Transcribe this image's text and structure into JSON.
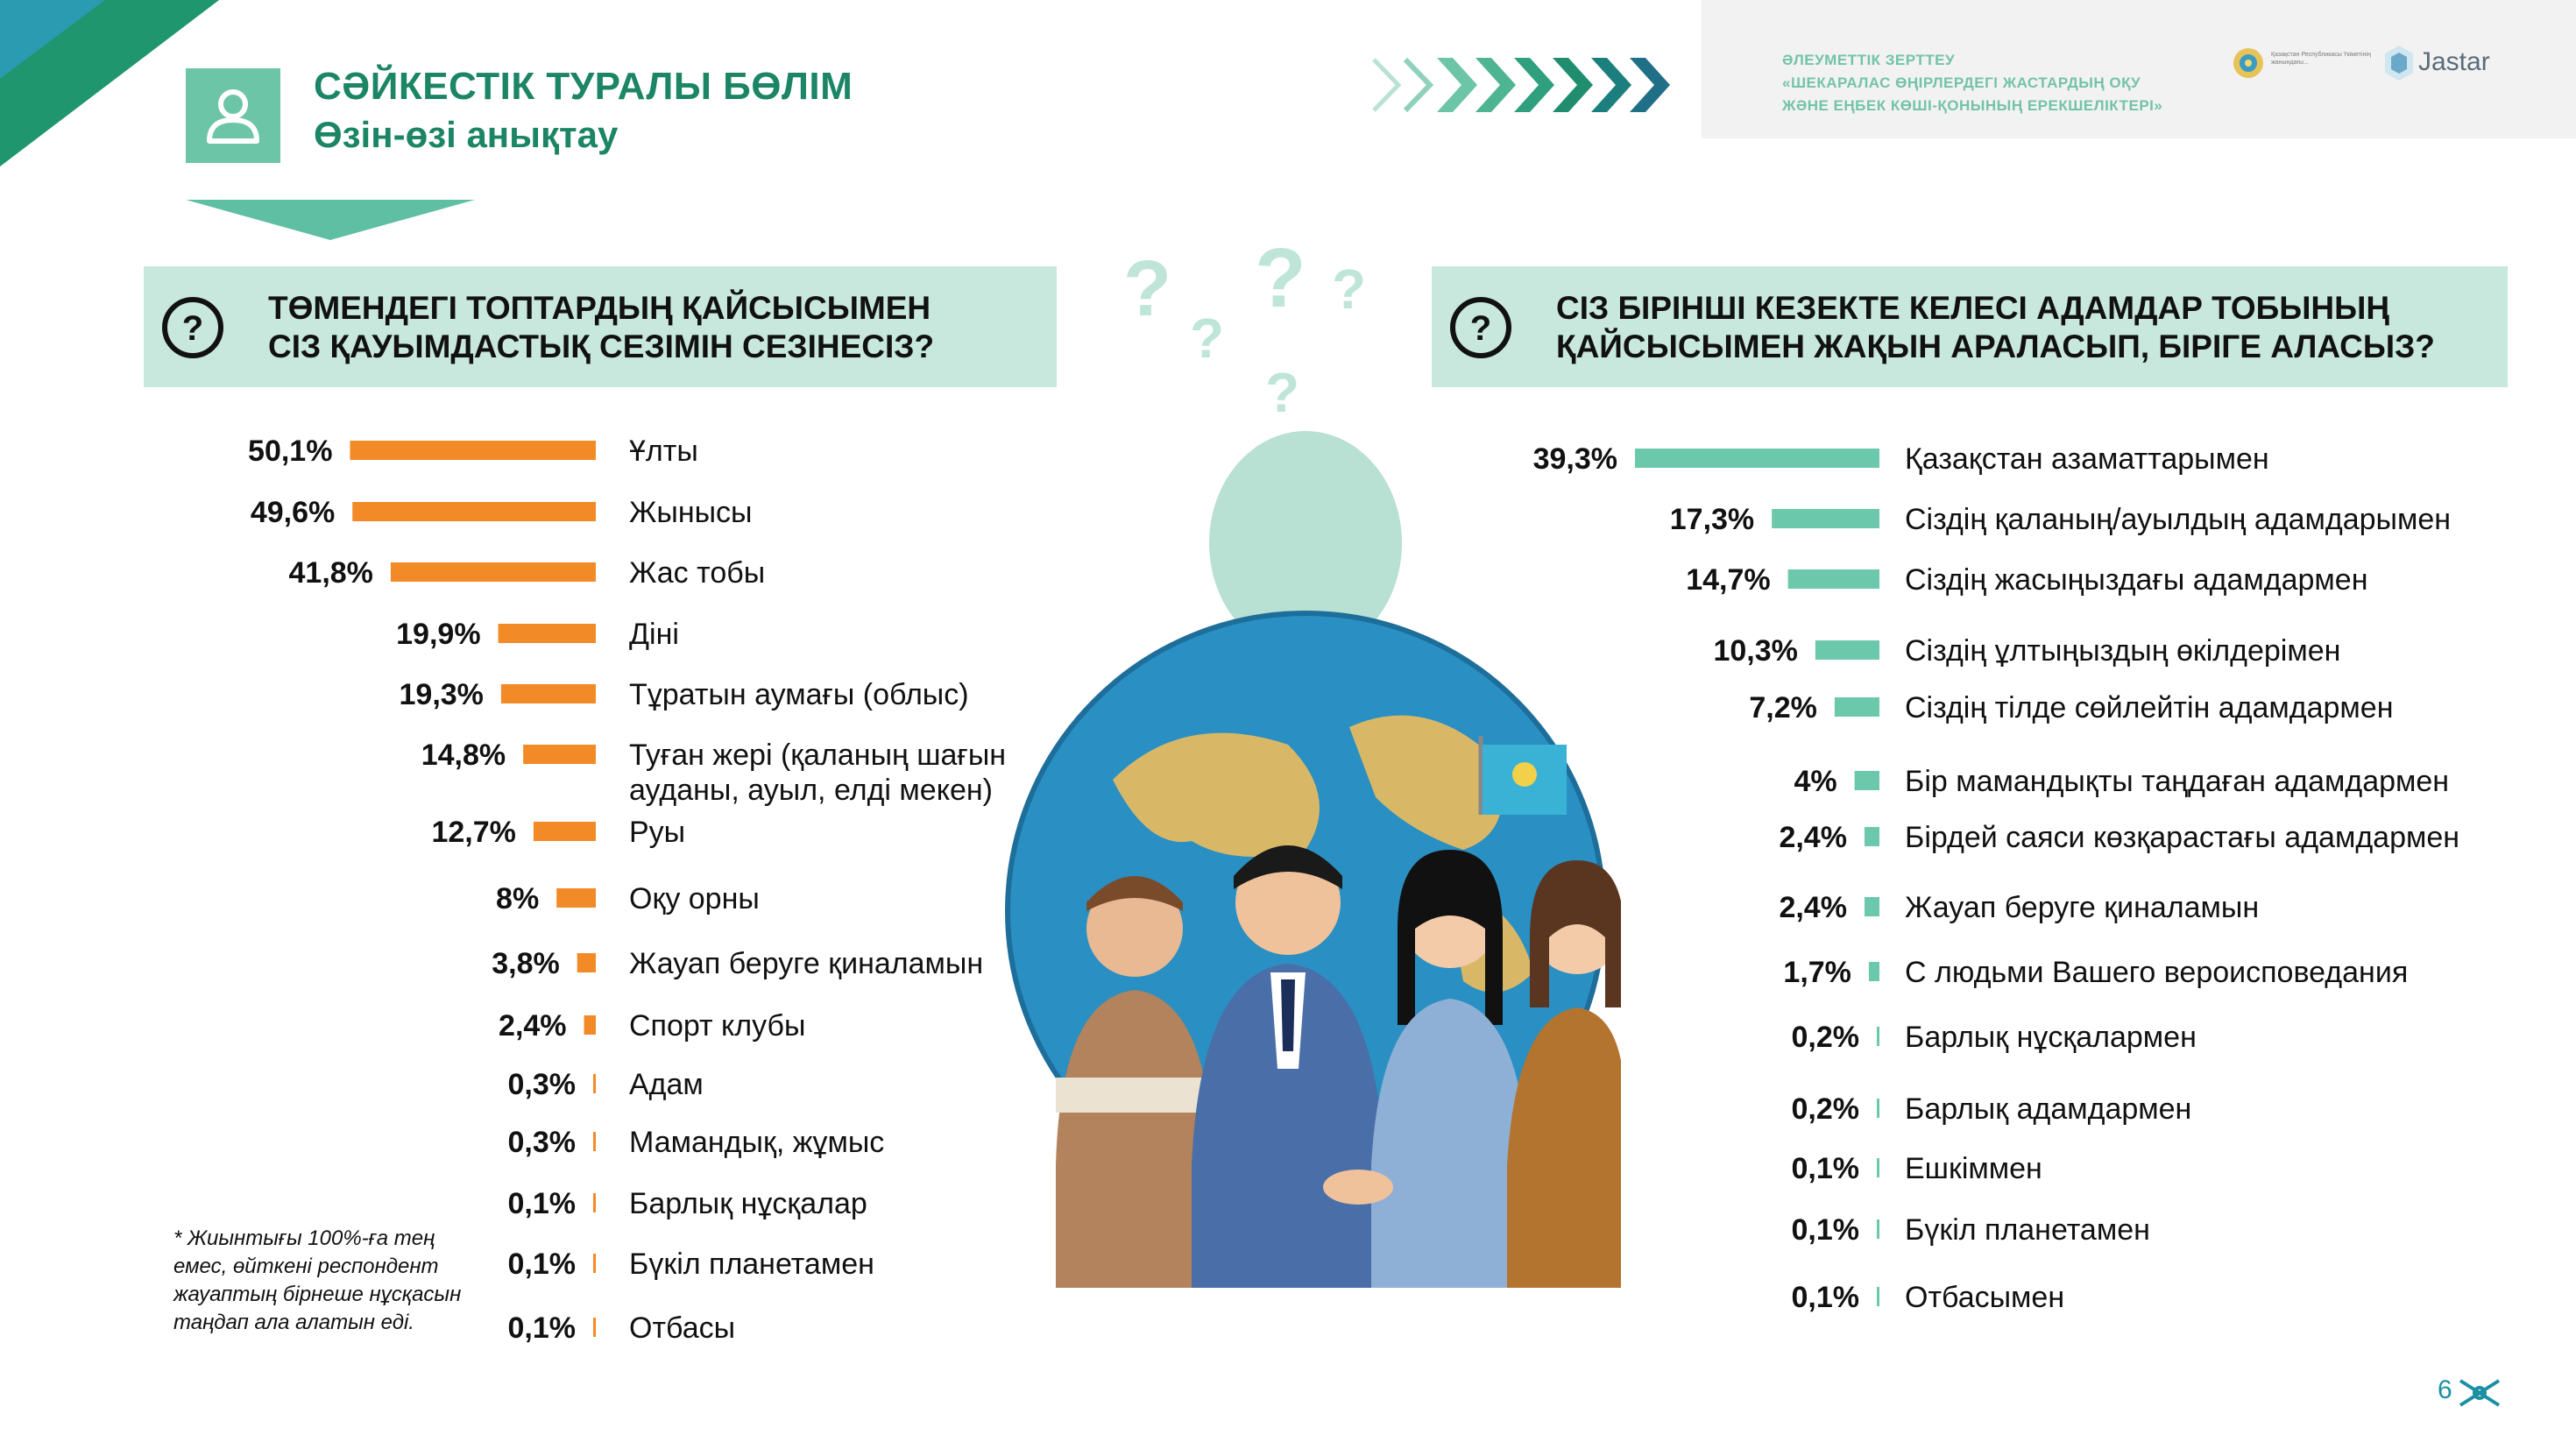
{
  "header": {
    "title": "СӘЙКЕСТІК ТУРАЛЫ БӨЛІМ",
    "subtitle": "Өзін-өзі анықтау",
    "research_line1": "ӘЛЕУМЕТТІК ЗЕРТТЕУ",
    "research_line2": "«ШЕКАРАЛАС ӨҢІРЛЕРДЕГІ ЖАСТАРДЫҢ ОҚУ",
    "research_line3": "ЖӘНЕ ЕҢБЕК КӨШІ-ҚОНЫНЫҢ ЕРЕКШЕЛІКТЕРІ»",
    "logo1_text": "Қазақстан Республикасы Үкіметінің жанындағы...",
    "logo2_text": "Jastar"
  },
  "colors": {
    "accent_green": "#1b8565",
    "question_bg": "#c8e8de",
    "bar_orange": "#f28a27",
    "bar_teal": "#6cc8aa"
  },
  "footnote": "* Жиынтығы 100%-ға тең емес, өйткені респондент жауаптың бірнеше нұсқасын таңдап ала алатын еді.",
  "page_number": "6",
  "chart_data": [
    {
      "type": "bar",
      "orientation": "horizontal",
      "title_line1": "ТӨМЕНДЕГІ ТОПТАРДЫҢ ҚАЙСЫСЫМЕН",
      "title_line2": "СІЗ ҚАУЫМДАСТЫҚ СЕЗІМІН СЕЗІНЕСІЗ?",
      "items": [
        {
          "label": "Ұлты",
          "value": 50.1,
          "display": "50,1%"
        },
        {
          "label": "Жынысы",
          "value": 49.6,
          "display": "49,6%"
        },
        {
          "label": "Жас тобы",
          "value": 41.8,
          "display": "41,8%"
        },
        {
          "label": "Діні",
          "value": 19.9,
          "display": "19,9%"
        },
        {
          "label": "Тұратын аумағы (облыс)",
          "value": 19.3,
          "display": "19,3%"
        },
        {
          "label": "Туған жері (қаланың шағын",
          "label2": "ауданы, ауыл, елді мекен)",
          "value": 14.8,
          "display": "14,8%"
        },
        {
          "label": "Руы",
          "value": 12.7,
          "display": "12,7%"
        },
        {
          "label": "Оқу орны",
          "value": 8,
          "display": "8%"
        },
        {
          "label": "Жауап беруге қиналамын",
          "value": 3.8,
          "display": "3,8%"
        },
        {
          "label": "Спорт клубы",
          "value": 2.4,
          "display": "2,4%"
        },
        {
          "label": "Адам",
          "value": 0.3,
          "display": "0,3%"
        },
        {
          "label": "Мамандық, жұмыс",
          "value": 0.3,
          "display": "0,3%"
        },
        {
          "label": "Барлық нұсқалар",
          "value": 0.1,
          "display": "0,1%"
        },
        {
          "label": "Бүкіл планетамен",
          "value": 0.1,
          "display": "0,1%"
        },
        {
          "label": "Отбасы",
          "value": 0.1,
          "display": "0,1%"
        }
      ]
    },
    {
      "type": "bar",
      "orientation": "horizontal",
      "title_line1": "СІЗ БІРІНШІ КЕЗЕКТЕ КЕЛЕСІ АДАМДАР ТОБЫНЫҢ",
      "title_line2": "ҚАЙСЫСЫМЕН ЖАҚЫН АРАЛАСЫП, БІРІГЕ АЛАСЫЗ?",
      "items": [
        {
          "label": "Қазақстан азаматтарымен",
          "value": 39.3,
          "display": "39,3%"
        },
        {
          "label": "Сіздің қаланың/ауылдың адамдарымен",
          "value": 17.3,
          "display": "17,3%"
        },
        {
          "label": "Сіздің жасыңыздағы адамдармен",
          "value": 14.7,
          "display": "14,7%"
        },
        {
          "label": "Сіздің ұлтыңыздың өкілдерімен",
          "value": 10.3,
          "display": "10,3%"
        },
        {
          "label": "Сіздің тілде сөйлейтін адамдармен",
          "value": 7.2,
          "display": "7,2%"
        },
        {
          "label": "Бір мамандықты таңдаған адамдармен",
          "value": 4,
          "display": "4%"
        },
        {
          "label": "Бірдей саяси көзқарастағы адамдармен",
          "value": 2.4,
          "display": "2,4%"
        },
        {
          "label": "Жауап беруге қиналамын",
          "value": 2.4,
          "display": "2,4%"
        },
        {
          "label": "С людьми Вашего вероисповедания",
          "value": 1.7,
          "display": "1,7%"
        },
        {
          "label": "Барлық нұсқалармен",
          "value": 0.2,
          "display": "0,2%"
        },
        {
          "label": "Барлық адамдармен",
          "value": 0.2,
          "display": "0,2%"
        },
        {
          "label": "Ешкіммен",
          "value": 0.1,
          "display": "0,1%"
        },
        {
          "label": "Бүкіл планетамен",
          "value": 0.1,
          "display": "0,1%"
        },
        {
          "label": "Отбасымен",
          "value": 0.1,
          "display": "0,1%"
        }
      ]
    }
  ]
}
